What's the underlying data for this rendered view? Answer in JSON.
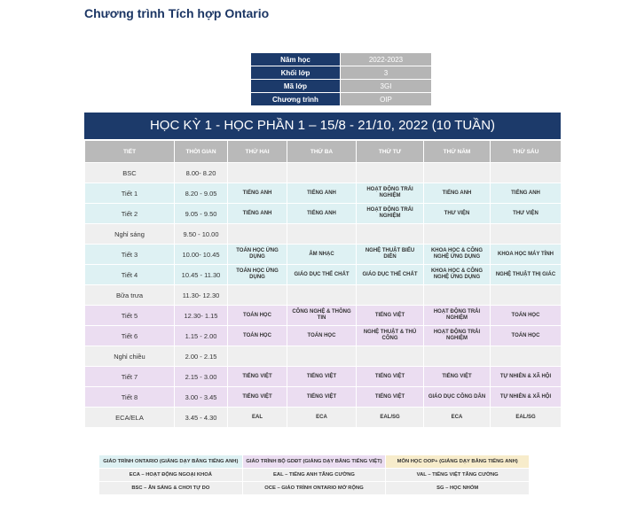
{
  "title": "Chương trình Tích hợp Ontario",
  "info": [
    {
      "label": "Năm học",
      "value": "2022-2023"
    },
    {
      "label": "Khối lớp",
      "value": "3"
    },
    {
      "label": "Mã lớp",
      "value": "3GI"
    },
    {
      "label": "Chương trình",
      "value": "OIP"
    }
  ],
  "banner": "HỌC KỲ 1 - HỌC PHẦN 1 – 15/8 - 21/10, 2022 (10 TUẦN)",
  "columns": [
    "TIẾT",
    "THỜI GIAN",
    "THỨ HAI",
    "THỨ BA",
    "THỨ TƯ",
    "THỨ NĂM",
    "THỨ SÁU"
  ],
  "rows": [
    {
      "color": "gray",
      "cells": [
        "BSC",
        "8.00- 8.20",
        "",
        "",
        "",
        "",
        ""
      ]
    },
    {
      "color": "blue",
      "cells": [
        "Tiết 1",
        "8.20 - 9.05",
        "TIẾNG ANH",
        "TIẾNG ANH",
        "HOẠT ĐỘNG TRẢI NGHIỆM",
        "TIẾNG ANH",
        "TIẾNG ANH"
      ]
    },
    {
      "color": "blue",
      "cells": [
        "Tiết 2",
        "9.05 - 9.50",
        "TIẾNG ANH",
        "TIẾNG ANH",
        "HOẠT ĐỘNG TRẢI NGHIỆM",
        "THƯ VIỆN",
        "THƯ VIỆN"
      ]
    },
    {
      "color": "gray",
      "cells": [
        "Nghỉ sáng",
        "9.50 - 10.00",
        "",
        "",
        "",
        "",
        ""
      ]
    },
    {
      "color": "blue",
      "cells": [
        "Tiết 3",
        "10.00- 10.45",
        "TOÁN HỌC ỨNG DỤNG",
        "ÂM NHẠC",
        "NGHỆ THUẬT BIỂU DIỄN",
        "KHOA HỌC & CÔNG NGHỆ ỨNG DỤNG",
        "KHOA HỌC MÁY TÍNH"
      ]
    },
    {
      "color": "blue",
      "cells": [
        "Tiết 4",
        "10.45 - 11.30",
        "TOÁN HỌC ỨNG DỤNG",
        "GIÁO DỤC THỂ CHẤT",
        "GIÁO DỤC THỂ CHẤT",
        "KHOA HỌC & CÔNG NGHỆ ỨNG DỤNG",
        "NGHỆ THUẬT THỊ GIÁC"
      ]
    },
    {
      "color": "gray",
      "cells": [
        "Bữa trưa",
        "11.30- 12.30",
        "",
        "",
        "",
        "",
        ""
      ]
    },
    {
      "color": "purple",
      "cells": [
        "Tiết 5",
        "12.30- 1.15",
        "TOÁN HỌC",
        "CÔNG NGHỆ & THÔNG TIN",
        "TIẾNG VIỆT",
        "HOẠT ĐỘNG TRẢI NGHIỆM",
        "TOÁN HỌC"
      ]
    },
    {
      "color": "purple",
      "cells": [
        "Tiết 6",
        "1.15 - 2.00",
        "TOÁN HỌC",
        "TOÁN HỌC",
        "NGHỆ THUẬT & THỦ CÔNG",
        "HOẠT ĐỘNG TRẢI NGHIỆM",
        "TOÁN HỌC"
      ]
    },
    {
      "color": "gray",
      "cells": [
        "Nghỉ chiều",
        "2.00 - 2.15",
        "",
        "",
        "",
        "",
        ""
      ]
    },
    {
      "color": "purple",
      "cells": [
        "Tiết 7",
        "2.15 - 3.00",
        "TIẾNG VIỆT",
        "TIẾNG VIỆT",
        "TIẾNG VIỆT",
        "TIẾNG VIỆT",
        "TỰ NHIÊN & XÃ HỘI"
      ]
    },
    {
      "color": "purple",
      "cells": [
        "Tiết 8",
        "3.00 - 3.45",
        "TIẾNG VIỆT",
        "TIẾNG VIỆT",
        "TIẾNG VIỆT",
        "GIÁO DỤC CÔNG DÂN",
        "TỰ NHIÊN & XÃ HỘI"
      ]
    },
    {
      "color": "gray",
      "cells": [
        "ECA/ELA",
        "3.45 - 4.30",
        "EAL",
        "ECA",
        "EAL/SG",
        "ECA",
        "EAL/SG"
      ]
    }
  ],
  "legend": [
    [
      "GIÁO TRÌNH ONTARIO (GIẢNG DẠY BẰNG TIẾNG ANH)",
      "GIÁO TRÌNH BỘ GDĐT (GIẢNG DẠY BẰNG TIẾNG VIỆT)",
      "MÔN HỌC OOP+ (GIẢNG DẠY BẰNG TIẾNG ANH)"
    ],
    [
      "ECA – HOẠT ĐỘNG NGOẠI KHOÁ",
      "EAL – TIẾNG ANH TĂNG CƯỜNG",
      "VAL – TIẾNG VIỆT TĂNG CƯỜNG"
    ],
    [
      "BSC – ĂN SÁNG & CHƠI TỰ DO",
      "OCE – GIÁO TRÌNH ONTARIO MỞ RỘNG",
      "SG – HỌC NHÓM"
    ]
  ],
  "colors": {
    "navy": "#1c3a6a",
    "header_gray": "#b9b9b9",
    "ontario_blue": "#def1f3",
    "moet_purple": "#ebddf1",
    "oop_yellow": "#f7eccb"
  }
}
